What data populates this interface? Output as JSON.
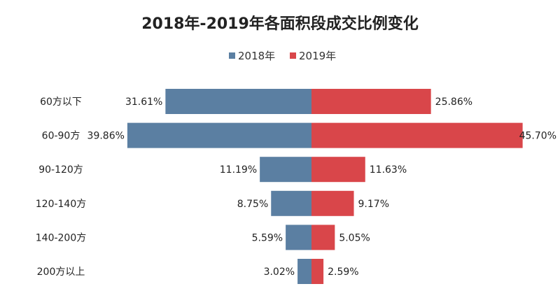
{
  "chart_data": {
    "type": "bar",
    "orientation": "horizontal-butterfly",
    "title": "2018年-2019年各面积段成交比例变化",
    "legend_position": "top",
    "categories": [
      "60方以下",
      "60-90方",
      "90-120方",
      "120-140方",
      "140-200方",
      "200方以上"
    ],
    "series": [
      {
        "name": "2018年",
        "color": "#5B7FA2",
        "direction": "left",
        "values": [
          31.61,
          39.86,
          11.19,
          8.75,
          5.59,
          3.02
        ],
        "labels": [
          "31.61%",
          "39.86%",
          "11.19%",
          "8.75%",
          "5.59%",
          "3.02%"
        ]
      },
      {
        "name": "2019年",
        "color": "#D9464A",
        "direction": "right",
        "values": [
          25.86,
          45.7,
          11.63,
          9.17,
          5.05,
          2.59
        ],
        "labels": [
          "25.86%",
          "45.70%",
          "11.63%",
          "9.17%",
          "5.05%",
          "2.59%"
        ]
      }
    ],
    "grid": false,
    "unit": "%"
  }
}
